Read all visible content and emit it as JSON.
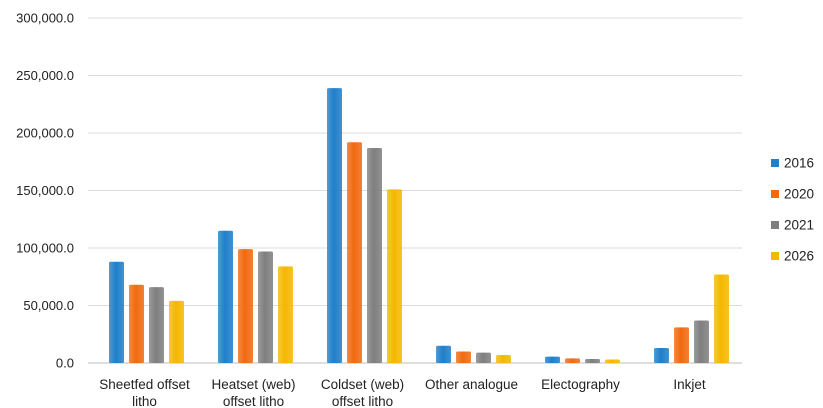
{
  "chart_data": {
    "type": "bar",
    "categories": [
      [
        "Sheetfed offset",
        "litho"
      ],
      [
        "Heatset (web)",
        "offset litho"
      ],
      [
        "Coldset (web)",
        "offset litho"
      ],
      [
        "Other analogue"
      ],
      [
        "Electography"
      ],
      [
        "Inkjet"
      ]
    ],
    "series": [
      {
        "name": "2016",
        "color": "#1f7fc9",
        "values": [
          88000,
          115000,
          239000,
          15000,
          5500,
          13000
        ]
      },
      {
        "name": "2020",
        "color": "#f06a10",
        "values": [
          68000,
          99000,
          192000,
          10000,
          4000,
          31000
        ]
      },
      {
        "name": "2021",
        "color": "#7f7f7f",
        "values": [
          66000,
          97000,
          187000,
          9000,
          3500,
          37000
        ]
      },
      {
        "name": "2026",
        "color": "#f5b800",
        "values": [
          54000,
          84000,
          151000,
          7000,
          3000,
          77000
        ]
      }
    ],
    "yticks": [
      "0.0",
      "50,000.0",
      "100,000.0",
      "150,000.0",
      "200,000.0",
      "250,000.0",
      "300,000.0"
    ],
    "ylim": [
      0,
      300000
    ],
    "grid": true,
    "legend": "right",
    "title": "",
    "xlabel": "",
    "ylabel": ""
  }
}
